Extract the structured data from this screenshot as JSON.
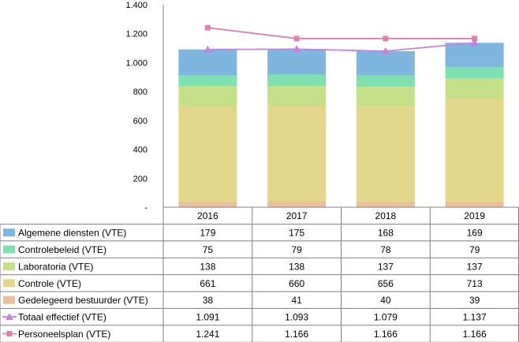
{
  "chart_data": {
    "type": "bar",
    "stacked": true,
    "categories": [
      "2016",
      "2017",
      "2018",
      "2019"
    ],
    "ylim": [
      0,
      1400
    ],
    "yticks": [
      "-",
      "200",
      "400",
      "600",
      "800",
      "1.000",
      "1.200",
      "1.400"
    ],
    "grid": false,
    "legend": "data table below chart",
    "series": [
      {
        "name": "Algemene diensten (VTE)",
        "kind": "bar",
        "color": "#7fb6e0",
        "values": [
          179,
          175,
          168,
          169
        ],
        "labels": [
          "179",
          "175",
          "168",
          "169"
        ]
      },
      {
        "name": "Controlebeleid (VTE)",
        "kind": "bar",
        "color": "#7fe0b0",
        "values": [
          75,
          79,
          78,
          79
        ],
        "labels": [
          "75",
          "79",
          "78",
          "79"
        ]
      },
      {
        "name": "Laboratoria (VTE)",
        "kind": "bar",
        "color": "#c6e08a",
        "values": [
          138,
          138,
          137,
          137
        ],
        "labels": [
          "138",
          "138",
          "137",
          "137"
        ]
      },
      {
        "name": "Controle (VTE)",
        "kind": "bar",
        "color": "#e2d78a",
        "values": [
          661,
          660,
          656,
          713
        ],
        "labels": [
          "661",
          "660",
          "656",
          "713"
        ]
      },
      {
        "name": "Gedelegeerd bestuurder (VTE)",
        "kind": "bar",
        "color": "#e8c09a",
        "values": [
          38,
          41,
          40,
          39
        ],
        "labels": [
          "38",
          "41",
          "40",
          "39"
        ]
      },
      {
        "name": "Totaal effectief (VTE)",
        "kind": "line",
        "marker": "triangle",
        "color": "#c77fe0",
        "values": [
          1091,
          1093,
          1079,
          1137
        ],
        "labels": [
          "1.091",
          "1.093",
          "1.079",
          "1.137"
        ]
      },
      {
        "name": "Personeelsplan (VTE)",
        "kind": "line",
        "marker": "square",
        "color": "#e07fb0",
        "values": [
          1241,
          1166,
          1166,
          1166
        ],
        "labels": [
          "1.241",
          "1.166",
          "1.166",
          "1.166"
        ]
      }
    ]
  }
}
